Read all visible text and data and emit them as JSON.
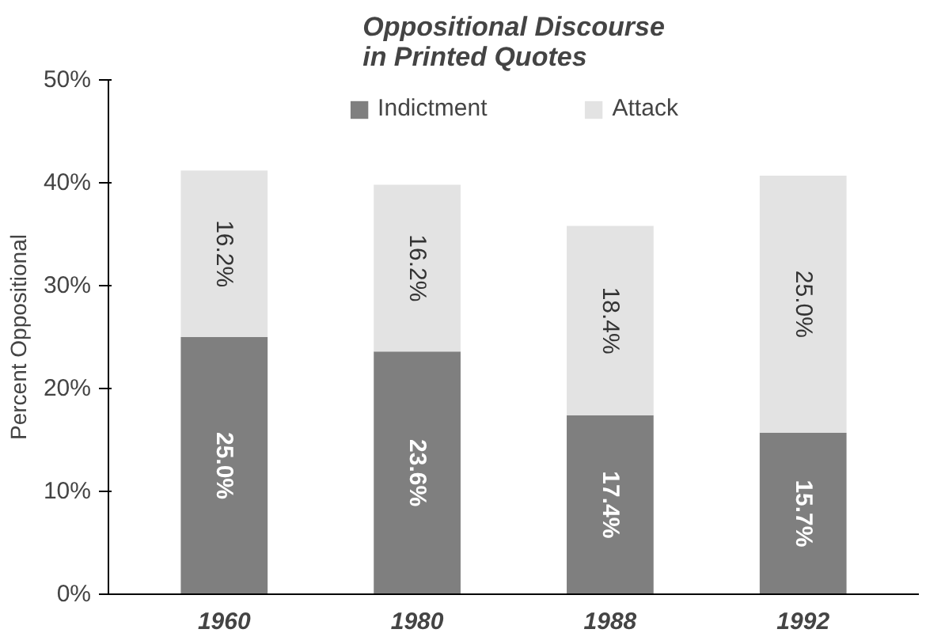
{
  "chart_data": {
    "type": "bar",
    "title": "Oppositional Discourse\nin Printed Quotes",
    "ylabel": "Percent Oppositional",
    "categories": [
      "1960",
      "1980",
      "1988",
      "1992"
    ],
    "stacked": true,
    "series": [
      {
        "name": "Indictment",
        "color": "#7f7f7f",
        "values": [
          25.0,
          23.6,
          17.4,
          15.7
        ],
        "value_labels": [
          "25.0%",
          "23.6%",
          "17.4%",
          "15.7%"
        ]
      },
      {
        "name": "Attack",
        "color": "#e3e3e3",
        "values": [
          16.2,
          16.2,
          18.4,
          25.0
        ],
        "value_labels": [
          "16.2%",
          "16.2%",
          "18.4%",
          "25.0%"
        ]
      }
    ],
    "ylim": [
      0,
      50
    ],
    "yticks": [
      {
        "value": 0,
        "label": "0%"
      },
      {
        "value": 10,
        "label": "10%"
      },
      {
        "value": 20,
        "label": "20%"
      },
      {
        "value": 30,
        "label": "30%"
      },
      {
        "value": 40,
        "label": "40%"
      },
      {
        "value": 50,
        "label": "50%"
      }
    ],
    "legend": "top",
    "grid": false
  }
}
